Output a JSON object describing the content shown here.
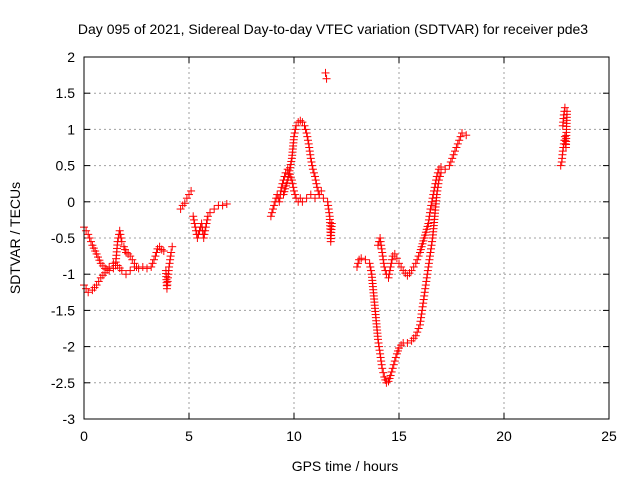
{
  "chart_data": {
    "type": "scatter",
    "title": "Day 095 of 2021, Sidereal Day-to-day VTEC variation (SDTVAR) for receiver pde3",
    "xlabel": "GPS time / hours",
    "ylabel": "SDTVAR / TECUs",
    "xlim": [
      0,
      25
    ],
    "ylim": [
      -3,
      2
    ],
    "xticks": [
      "0",
      "5",
      "10",
      "15",
      "20",
      "25"
    ],
    "yticks": [
      "-3",
      "-2.5",
      "-2",
      "-1.5",
      "-1",
      "-0.5",
      "0",
      "0.5",
      "1",
      "1.5",
      "2"
    ],
    "grid": true,
    "marker": "+",
    "color": "#ff0000",
    "series": [
      {
        "name": "SDTVAR",
        "segments": [
          [
            [
              0.0,
              -0.35
            ],
            [
              0.2,
              -0.45
            ],
            [
              0.4,
              -0.6
            ],
            [
              0.6,
              -0.72
            ],
            [
              0.8,
              -0.85
            ],
            [
              1.0,
              -0.92
            ],
            [
              1.2,
              -0.95
            ],
            [
              1.4,
              -0.92
            ],
            [
              1.5,
              -0.88
            ],
            [
              1.6,
              -0.55
            ],
            [
              1.7,
              -0.4
            ],
            [
              1.8,
              -0.55
            ],
            [
              1.9,
              -0.62
            ],
            [
              2.0,
              -0.7
            ],
            [
              2.1,
              -0.72
            ],
            [
              2.2,
              -0.75
            ],
            [
              2.3,
              -0.8
            ],
            [
              2.4,
              -0.85
            ],
            [
              2.5,
              -0.9
            ],
            [
              2.6,
              -0.92
            ],
            [
              2.8,
              -0.9
            ],
            [
              3.0,
              -0.92
            ],
            [
              3.2,
              -0.9
            ],
            [
              3.4,
              -0.75
            ],
            [
              3.5,
              -0.65
            ],
            [
              3.6,
              -0.62
            ],
            [
              3.7,
              -0.66
            ],
            [
              3.8,
              -0.68
            ]
          ],
          [
            [
              0.0,
              -1.15
            ],
            [
              0.2,
              -1.25
            ],
            [
              0.4,
              -1.22
            ],
            [
              0.6,
              -1.15
            ],
            [
              0.8,
              -1.05
            ],
            [
              1.0,
              -0.98
            ],
            [
              1.2,
              -0.9
            ],
            [
              1.4,
              -0.85
            ],
            [
              1.6,
              -0.88
            ],
            [
              1.8,
              -0.95
            ],
            [
              2.0,
              -1.0
            ],
            [
              2.2,
              -0.95
            ],
            [
              2.4,
              -0.9
            ]
          ],
          [
            [
              3.9,
              -0.95
            ],
            [
              3.95,
              -1.2
            ],
            [
              4.0,
              -1.05
            ],
            [
              4.05,
              -0.9
            ],
            [
              4.1,
              -0.8
            ],
            [
              4.15,
              -0.7
            ],
            [
              4.2,
              -0.62
            ]
          ],
          [
            [
              4.6,
              -0.1
            ],
            [
              4.7,
              -0.05
            ],
            [
              4.8,
              -0.02
            ],
            [
              4.9,
              0.05
            ],
            [
              5.0,
              0.1
            ],
            [
              5.1,
              0.15
            ]
          ],
          [
            [
              5.2,
              -0.2
            ],
            [
              5.3,
              -0.35
            ],
            [
              5.4,
              -0.5
            ],
            [
              5.5,
              -0.4
            ],
            [
              5.6,
              -0.3
            ],
            [
              5.7,
              -0.5
            ],
            [
              5.8,
              -0.35
            ],
            [
              5.9,
              -0.2
            ],
            [
              6.0,
              -0.15
            ],
            [
              6.2,
              -0.1
            ],
            [
              6.4,
              -0.05
            ],
            [
              6.6,
              -0.05
            ],
            [
              6.8,
              -0.03
            ]
          ],
          [
            [
              8.9,
              -0.2
            ],
            [
              9.0,
              -0.1
            ],
            [
              9.1,
              0.0
            ],
            [
              9.2,
              0.1
            ],
            [
              9.3,
              0.0
            ],
            [
              9.4,
              0.2
            ],
            [
              9.5,
              0.3
            ],
            [
              9.6,
              0.4
            ],
            [
              9.7,
              0.45
            ],
            [
              9.8,
              0.38
            ],
            [
              9.9,
              0.3
            ],
            [
              10.0,
              0.15
            ],
            [
              10.1,
              0.05
            ],
            [
              10.2,
              0.0
            ],
            [
              10.3,
              0.05
            ],
            [
              10.4,
              0.0
            ],
            [
              10.6,
              0.05
            ],
            [
              10.8,
              0.1
            ],
            [
              11.0,
              0.05
            ],
            [
              11.2,
              0.1
            ],
            [
              11.4,
              0.05
            ],
            [
              11.6,
              0.0
            ],
            [
              11.7,
              -0.2
            ],
            [
              11.75,
              -0.55
            ],
            [
              11.8,
              -0.3
            ]
          ],
          [
            [
              9.5,
              0.1
            ],
            [
              9.7,
              0.3
            ],
            [
              9.9,
              0.6
            ],
            [
              10.0,
              0.9
            ],
            [
              10.1,
              1.05
            ],
            [
              10.2,
              1.1
            ],
            [
              10.3,
              1.12
            ],
            [
              10.4,
              1.1
            ],
            [
              10.5,
              1.05
            ],
            [
              10.6,
              0.95
            ],
            [
              10.7,
              0.8
            ],
            [
              10.8,
              0.6
            ],
            [
              10.9,
              0.45
            ],
            [
              11.0,
              0.35
            ],
            [
              11.1,
              0.2
            ],
            [
              11.2,
              0.1
            ],
            [
              11.3,
              0.15
            ]
          ],
          [
            [
              11.5,
              1.78
            ],
            [
              11.55,
              1.7
            ]
          ],
          [
            [
              13.0,
              -0.9
            ],
            [
              13.1,
              -0.8
            ],
            [
              13.2,
              -0.78
            ],
            [
              13.4,
              -0.8
            ],
            [
              13.6,
              -0.85
            ],
            [
              13.7,
              -1.0
            ],
            [
              13.8,
              -1.3
            ],
            [
              13.9,
              -1.6
            ],
            [
              14.0,
              -1.9
            ],
            [
              14.1,
              -2.1
            ],
            [
              14.2,
              -2.3
            ],
            [
              14.3,
              -2.42
            ],
            [
              14.4,
              -2.5
            ],
            [
              14.5,
              -2.48
            ],
            [
              14.6,
              -2.4
            ],
            [
              14.7,
              -2.3
            ],
            [
              14.8,
              -2.2
            ],
            [
              14.9,
              -2.1
            ],
            [
              15.0,
              -2.02
            ],
            [
              15.1,
              -1.98
            ],
            [
              15.2,
              -1.95
            ],
            [
              15.4,
              -1.95
            ],
            [
              15.6,
              -1.92
            ],
            [
              15.8,
              -1.85
            ],
            [
              16.0,
              -1.7
            ],
            [
              16.1,
              -1.5
            ],
            [
              16.2,
              -1.3
            ],
            [
              16.3,
              -1.1
            ],
            [
              16.4,
              -0.9
            ],
            [
              16.5,
              -0.7
            ],
            [
              16.6,
              -0.5
            ],
            [
              16.7,
              -0.2
            ],
            [
              16.8,
              0.1
            ],
            [
              16.9,
              0.3
            ],
            [
              17.0,
              0.4
            ],
            [
              17.2,
              0.45
            ],
            [
              17.4,
              0.5
            ],
            [
              17.6,
              0.65
            ],
            [
              17.8,
              0.8
            ],
            [
              18.0,
              0.95
            ],
            [
              18.2,
              0.92
            ]
          ],
          [
            [
              14.0,
              -0.6
            ],
            [
              14.1,
              -0.5
            ],
            [
              14.2,
              -0.7
            ],
            [
              14.3,
              -0.9
            ],
            [
              14.4,
              -1.0
            ],
            [
              14.5,
              -1.05
            ],
            [
              14.6,
              -0.9
            ],
            [
              14.7,
              -0.75
            ],
            [
              14.8,
              -0.72
            ],
            [
              14.9,
              -0.78
            ],
            [
              15.0,
              -0.85
            ],
            [
              15.2,
              -0.95
            ],
            [
              15.4,
              -1.02
            ],
            [
              15.6,
              -0.95
            ],
            [
              15.8,
              -0.85
            ],
            [
              16.0,
              -0.7
            ],
            [
              16.2,
              -0.5
            ],
            [
              16.4,
              -0.3
            ],
            [
              16.5,
              -0.1
            ],
            [
              16.6,
              0.05
            ],
            [
              16.7,
              0.2
            ],
            [
              16.8,
              0.35
            ],
            [
              16.9,
              0.45
            ],
            [
              17.0,
              0.48
            ]
          ],
          [
            [
              22.7,
              0.5
            ],
            [
              22.75,
              0.55
            ],
            [
              22.8,
              0.7
            ],
            [
              22.85,
              0.8
            ],
            [
              22.9,
              0.9
            ],
            [
              22.95,
              0.75
            ],
            [
              23.0,
              1.25
            ],
            [
              22.9,
              1.3
            ],
            [
              22.85,
              1.2
            ],
            [
              22.8,
              1.05
            ]
          ]
        ]
      }
    ]
  }
}
